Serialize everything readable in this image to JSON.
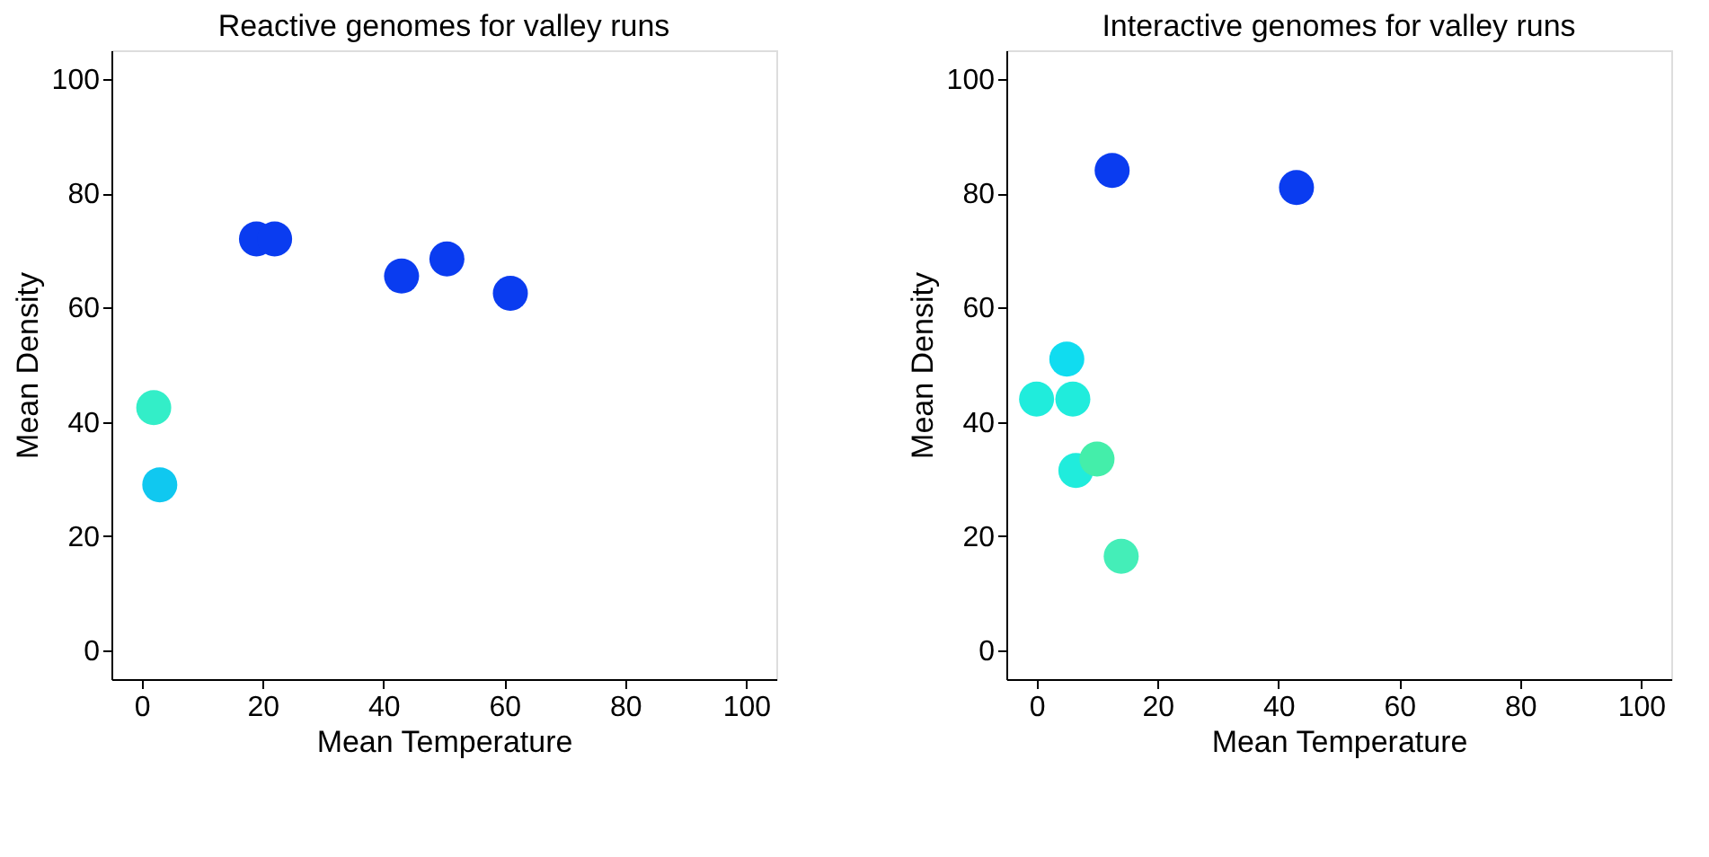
{
  "chart_data": [
    {
      "type": "scatter",
      "title": "Reactive genomes for valley runs",
      "xlabel": "Mean Temperature",
      "ylabel": "Mean Density",
      "xlim": [
        -5,
        105
      ],
      "ylim": [
        -5,
        105
      ],
      "xticks": [
        0,
        20,
        40,
        60,
        80,
        100
      ],
      "yticks": [
        0,
        20,
        40,
        60,
        80,
        100
      ],
      "grid": false,
      "marker": "circle",
      "series": [
        {
          "x": [
            2,
            3,
            19,
            22,
            43,
            50.5,
            61
          ],
          "values": [
            42.5,
            29,
            72,
            72,
            65.5,
            68.5,
            62.5
          ],
          "colors": [
            "#33eec8",
            "#10c8f0",
            "#0a3cf0",
            "#0a3cf0",
            "#0a3cf0",
            "#0a3cf0",
            "#0a3cf0"
          ]
        }
      ]
    },
    {
      "type": "scatter",
      "title": "Interactive genomes for valley runs",
      "xlabel": "Mean Temperature",
      "ylabel": "Mean Density",
      "xlim": [
        -5,
        105
      ],
      "ylim": [
        -5,
        105
      ],
      "xticks": [
        0,
        20,
        40,
        60,
        80,
        100
      ],
      "yticks": [
        0,
        20,
        40,
        60,
        80,
        100
      ],
      "grid": false,
      "marker": "circle",
      "series": [
        {
          "x": [
            12.5,
            43,
            5,
            0,
            6,
            6.5,
            10,
            14
          ],
          "values": [
            84,
            81,
            51,
            44,
            44,
            31.5,
            33.5,
            16.5
          ],
          "colors": [
            "#0a3cf0",
            "#0a3cf0",
            "#10dcf0",
            "#20ecdc",
            "#20ecdc",
            "#20ecdc",
            "#44eeaa",
            "#44eeb8"
          ]
        }
      ]
    }
  ]
}
